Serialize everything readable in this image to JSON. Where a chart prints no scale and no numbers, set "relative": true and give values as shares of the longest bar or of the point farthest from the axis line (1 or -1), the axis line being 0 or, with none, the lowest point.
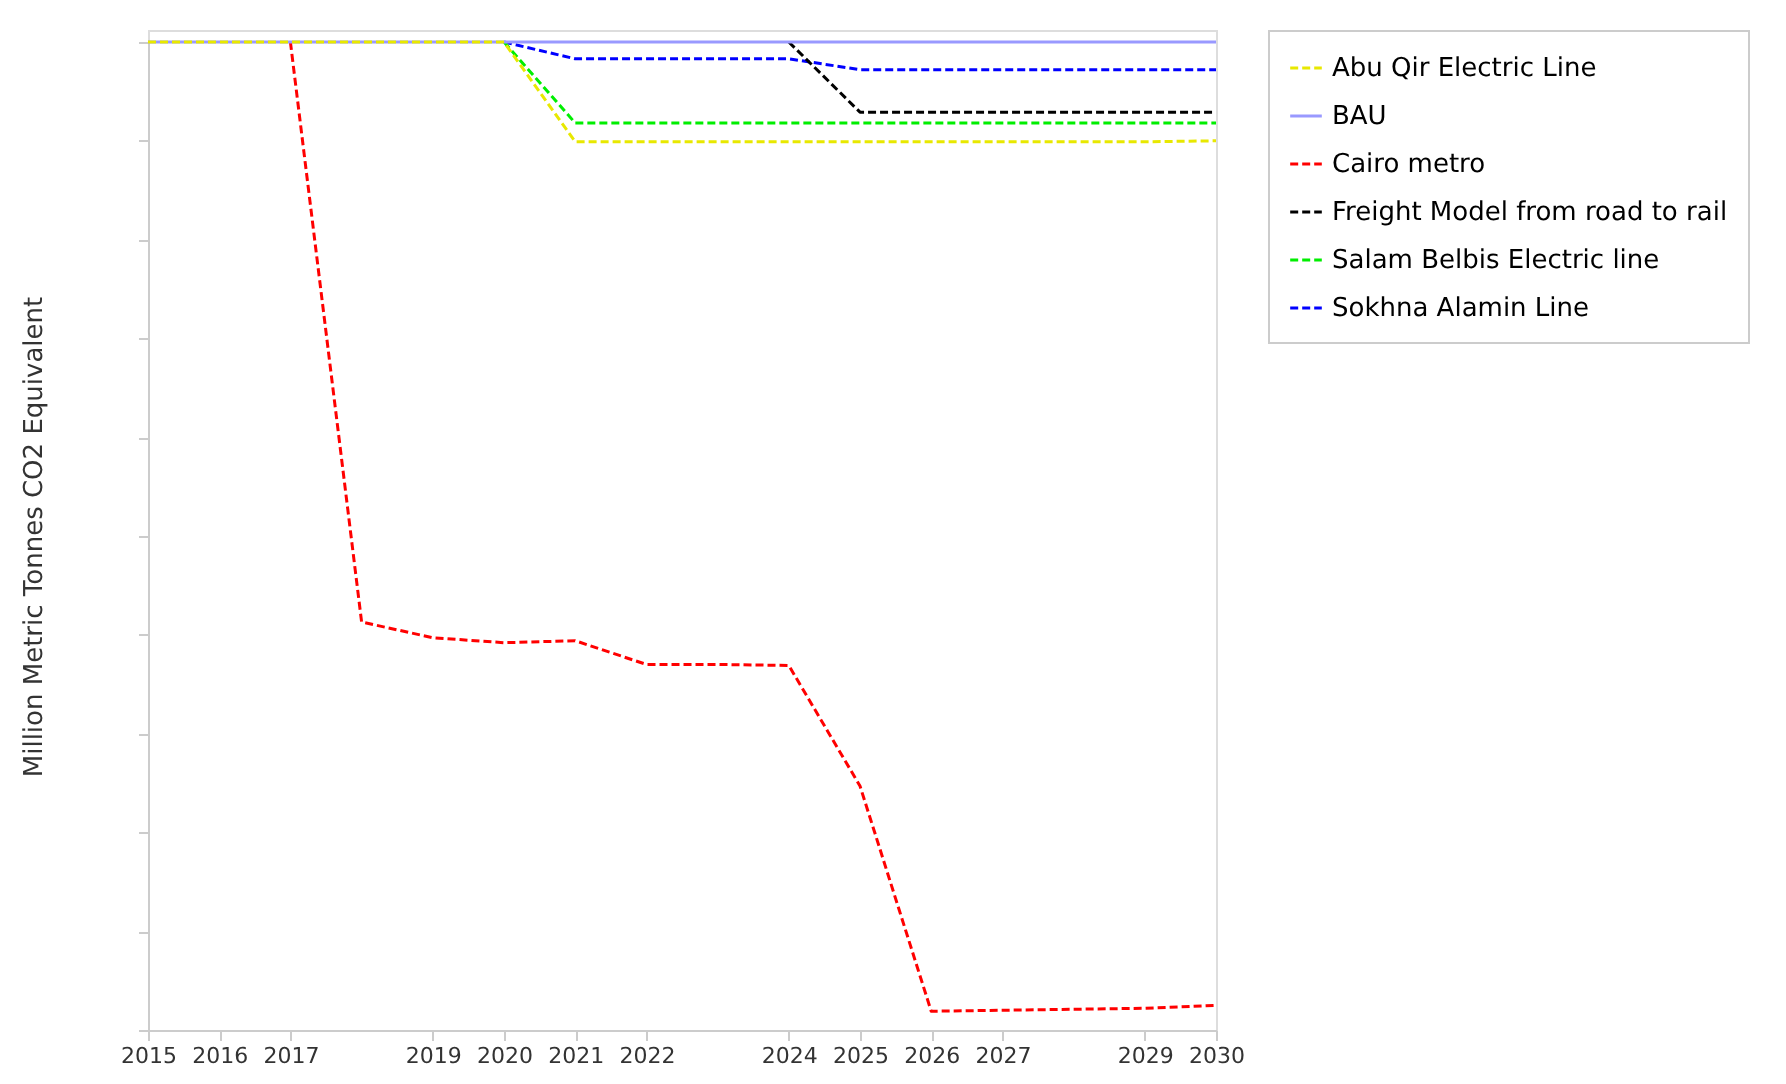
{
  "chart_data": {
    "type": "line",
    "relative": true,
    "ylabel": "Million Metric Tonnes CO2 Equivalent",
    "x": [
      2015,
      2016,
      2017,
      2018,
      2019,
      2020,
      2021,
      2022,
      2023,
      2024,
      2025,
      2026,
      2027,
      2028,
      2029,
      2030
    ],
    "xlim": [
      2015,
      2030
    ],
    "xticks": [
      2015,
      2016,
      2017,
      2019,
      2020,
      2021,
      2022,
      2024,
      2025,
      2026,
      2027,
      2029,
      2030
    ],
    "grid": false,
    "legend": "right",
    "marker": "none",
    "series": [
      {
        "name": "Abu Qir Electric Line",
        "color": "#e8e800",
        "line_style": "dashed",
        "values": [
          1,
          1,
          1,
          1,
          1,
          1,
          0.899,
          0.899,
          0.899,
          0.899,
          0.899,
          0.899,
          0.899,
          0.899,
          0.899,
          0.9
        ]
      },
      {
        "name": "BAU",
        "color": "#9999ff",
        "line_style": "solid",
        "values": [
          1,
          1,
          1,
          1,
          1,
          1,
          1,
          1,
          1,
          1,
          1,
          1,
          1,
          1,
          1,
          1
        ]
      },
      {
        "name": "Cairo metro",
        "color": "#ff0000",
        "line_style": "dashed",
        "values": [
          null,
          null,
          1,
          0.413,
          0.397,
          0.392,
          0.394,
          0.37,
          0.37,
          0.369,
          0.247,
          0.019,
          0.02,
          0.021,
          0.022,
          0.025
        ]
      },
      {
        "name": "Freight Model from road to rail",
        "color": "#000000",
        "line_style": "dashed",
        "values": [
          null,
          null,
          null,
          null,
          null,
          null,
          null,
          null,
          null,
          1,
          0.929,
          0.929,
          0.929,
          0.929,
          0.929,
          0.929
        ]
      },
      {
        "name": "Salam Belbis Electric line",
        "color": "#00ee00",
        "line_style": "dashed",
        "values": [
          null,
          null,
          null,
          null,
          null,
          1,
          0.918,
          0.918,
          0.918,
          0.918,
          0.918,
          0.918,
          0.918,
          0.918,
          0.918,
          0.918
        ]
      },
      {
        "name": "Sokhna Alamin Line",
        "color": "#0000ff",
        "line_style": "dashed",
        "values": [
          null,
          null,
          null,
          null,
          null,
          1,
          0.983,
          0.983,
          0.983,
          0.983,
          0.972,
          0.972,
          0.972,
          0.972,
          0.972,
          0.972
        ]
      }
    ]
  }
}
